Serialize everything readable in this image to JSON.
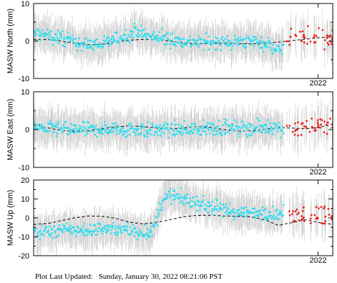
{
  "chart_data": [
    {
      "type": "scatter",
      "ylabel": "MASW North (mm)",
      "ylim": [
        -10,
        10
      ],
      "yticks": [
        "10",
        "0",
        "-10"
      ],
      "xtick_label": "2022",
      "x_range": [
        2021.0,
        2022.1
      ],
      "model_curve": [
        [
          2021.0,
          0.4
        ],
        [
          2021.05,
          0.4
        ],
        [
          2021.1,
          0.0
        ],
        [
          2021.15,
          -0.6
        ],
        [
          2021.2,
          -1.0
        ],
        [
          2021.25,
          -0.9
        ],
        [
          2021.3,
          -0.3
        ],
        [
          2021.35,
          0.2
        ],
        [
          2021.4,
          0.4
        ],
        [
          2021.45,
          0.3
        ],
        [
          2021.5,
          0.0
        ],
        [
          2021.55,
          -0.5
        ],
        [
          2021.6,
          -0.8
        ],
        [
          2021.65,
          -0.7
        ],
        [
          2021.7,
          -0.6
        ],
        [
          2021.75,
          -0.7
        ],
        [
          2021.8,
          -0.8
        ],
        [
          2021.85,
          -0.6
        ],
        [
          2021.9,
          -0.3
        ],
        [
          2021.95,
          0.1
        ],
        [
          2022.0,
          0.5
        ],
        [
          2022.05,
          0.9
        ],
        [
          2022.1,
          1.1
        ]
      ],
      "cyan_band": [
        [
          2021.0,
          1.8
        ],
        [
          2021.05,
          1.5
        ],
        [
          2021.1,
          0.8
        ],
        [
          2021.15,
          -0.3
        ],
        [
          2021.2,
          -1.0
        ],
        [
          2021.25,
          -0.8
        ],
        [
          2021.3,
          0.4
        ],
        [
          2021.35,
          1.8
        ],
        [
          2021.38,
          3.0
        ],
        [
          2021.42,
          1.2
        ],
        [
          2021.47,
          0.8
        ],
        [
          2021.52,
          0.2
        ],
        [
          2021.57,
          -0.2
        ],
        [
          2021.62,
          -0.3
        ],
        [
          2021.67,
          -0.3
        ],
        [
          2021.72,
          -0.4
        ],
        [
          2021.77,
          -0.2
        ],
        [
          2021.82,
          0.0
        ],
        [
          2021.87,
          -1.0
        ],
        [
          2021.9,
          -3.0
        ],
        [
          2021.92,
          -0.5
        ]
      ],
      "red_band": [
        [
          2021.93,
          0.5
        ],
        [
          2022.1,
          1.0
        ]
      ]
    },
    {
      "type": "scatter",
      "ylabel": "MASW East (mm)",
      "ylim": [
        -10,
        10
      ],
      "yticks": [
        "10",
        "0",
        "-10"
      ],
      "xtick_label": "2022",
      "x_range": [
        2021.0,
        2022.1
      ],
      "model_curve": [
        [
          2021.0,
          1.4
        ],
        [
          2021.05,
          0.5
        ],
        [
          2021.1,
          -0.2
        ],
        [
          2021.15,
          -0.4
        ],
        [
          2021.2,
          -0.3
        ],
        [
          2021.25,
          0.2
        ],
        [
          2021.3,
          0.7
        ],
        [
          2021.35,
          1.0
        ],
        [
          2021.4,
          0.8
        ],
        [
          2021.45,
          0.4
        ],
        [
          2021.5,
          0.2
        ],
        [
          2021.55,
          0.4
        ],
        [
          2021.6,
          0.8
        ],
        [
          2021.65,
          0.6
        ],
        [
          2021.7,
          0.0
        ],
        [
          2021.75,
          -0.4
        ],
        [
          2021.8,
          -0.3
        ],
        [
          2021.85,
          0.1
        ],
        [
          2021.9,
          0.5
        ],
        [
          2021.95,
          0.4
        ],
        [
          2022.0,
          0.2
        ],
        [
          2022.05,
          0.6
        ],
        [
          2022.1,
          1.4
        ]
      ],
      "cyan_band": [
        [
          2021.0,
          0.8
        ],
        [
          2021.05,
          0.3
        ],
        [
          2021.1,
          0.0
        ],
        [
          2021.15,
          0.1
        ],
        [
          2021.2,
          -0.1
        ],
        [
          2021.25,
          0.0
        ],
        [
          2021.3,
          0.3
        ],
        [
          2021.35,
          0.0
        ],
        [
          2021.4,
          0.0
        ],
        [
          2021.45,
          -0.2
        ],
        [
          2021.5,
          0.0
        ],
        [
          2021.55,
          0.0
        ],
        [
          2021.6,
          0.1
        ],
        [
          2021.65,
          0.3
        ],
        [
          2021.7,
          0.4
        ],
        [
          2021.75,
          0.3
        ],
        [
          2021.8,
          0.5
        ],
        [
          2021.85,
          0.6
        ],
        [
          2021.9,
          0.4
        ],
        [
          2021.92,
          0.3
        ]
      ],
      "red_band": [
        [
          2021.93,
          0.2
        ],
        [
          2022.1,
          1.5
        ]
      ]
    },
    {
      "type": "scatter",
      "ylabel": "MASW Up (mm)",
      "ylim": [
        -20,
        20
      ],
      "yticks": [
        "20",
        "10",
        "0",
        "-10",
        "-20"
      ],
      "xtick_label": "2022",
      "x_range": [
        2021.0,
        2022.1
      ],
      "model_curve": [
        [
          2021.0,
          -3.5
        ],
        [
          2021.05,
          -3.0
        ],
        [
          2021.1,
          -1.5
        ],
        [
          2021.15,
          0.0
        ],
        [
          2021.2,
          1.0
        ],
        [
          2021.25,
          0.8
        ],
        [
          2021.3,
          -0.2
        ],
        [
          2021.35,
          -2.2
        ],
        [
          2021.4,
          -3.2
        ],
        [
          2021.45,
          -2.5
        ],
        [
          2021.5,
          -1.0
        ],
        [
          2021.55,
          0.5
        ],
        [
          2021.6,
          1.3
        ],
        [
          2021.65,
          1.4
        ],
        [
          2021.7,
          1.0
        ],
        [
          2021.75,
          0.8
        ],
        [
          2021.8,
          0.5
        ],
        [
          2021.85,
          -1.0
        ],
        [
          2021.9,
          -4.0
        ],
        [
          2021.95,
          -2.5
        ],
        [
          2022.0,
          -1.0
        ],
        [
          2022.05,
          -2.5
        ],
        [
          2022.1,
          -3.5
        ]
      ],
      "cyan_band": [
        [
          2021.0,
          -8.0
        ],
        [
          2021.05,
          -7.0
        ],
        [
          2021.1,
          -6.5
        ],
        [
          2021.15,
          -6.0
        ],
        [
          2021.2,
          -7.0
        ],
        [
          2021.25,
          -5.5
        ],
        [
          2021.3,
          -6.0
        ],
        [
          2021.35,
          -7.0
        ],
        [
          2021.4,
          -7.5
        ],
        [
          2021.44,
          -7.5
        ],
        [
          2021.47,
          8.0
        ],
        [
          2021.5,
          12.0
        ],
        [
          2021.55,
          10.0
        ],
        [
          2021.6,
          8.0
        ],
        [
          2021.65,
          6.0
        ],
        [
          2021.7,
          4.0
        ],
        [
          2021.75,
          3.0
        ],
        [
          2021.8,
          2.5
        ],
        [
          2021.85,
          3.0
        ],
        [
          2021.9,
          1.0
        ],
        [
          2021.92,
          2.0
        ]
      ],
      "red_band": [
        [
          2021.93,
          2.0
        ],
        [
          2022.1,
          2.5
        ]
      ]
    }
  ],
  "footer_text": "Plot Last Updated:   Sunday, January 30, 2022 08:21:06 PST"
}
